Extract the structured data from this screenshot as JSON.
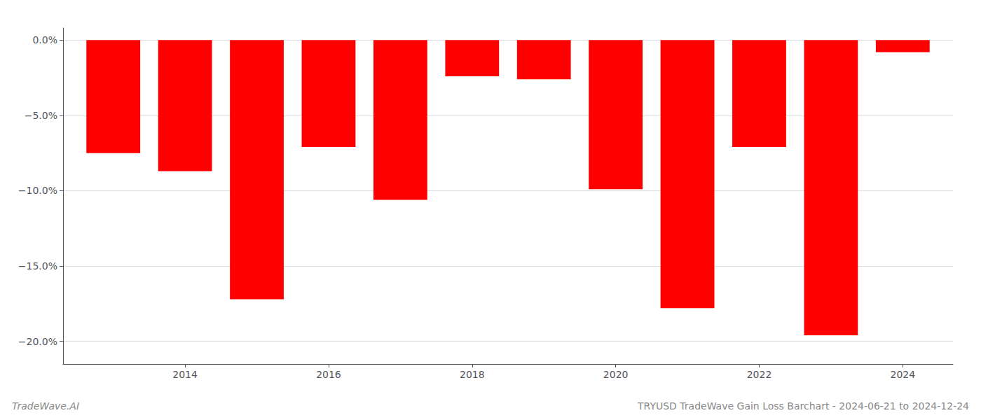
{
  "chart_data": {
    "type": "bar",
    "title": "TRYUSD TradeWave Gain Loss Barchart - 2024-06-21 to 2024-12-24",
    "annotations": [
      "TradeWave.AI"
    ],
    "x": [
      2013,
      2014,
      2015,
      2016,
      2017,
      2018,
      2019,
      2020,
      2021,
      2022,
      2023,
      2024
    ],
    "values": [
      -7.5,
      -8.7,
      -17.2,
      -7.1,
      -10.6,
      -2.4,
      -2.6,
      -9.9,
      -17.8,
      -7.1,
      -19.6,
      -0.8
    ],
    "color": "#ff0000",
    "xlim": [
      2012.3,
      2024.7
    ],
    "xticks": [
      2014,
      2016,
      2018,
      2020,
      2022,
      2024
    ],
    "ylim": [
      -21.5,
      0.8
    ],
    "yticks": [
      {
        "value": 0.0,
        "label": "0.0%"
      },
      {
        "value": -5.0,
        "label": "−5.0%"
      },
      {
        "value": -10.0,
        "label": "−10.0%"
      },
      {
        "value": -15.0,
        "label": "−15.0%"
      },
      {
        "value": -20.0,
        "label": "−20.0%"
      }
    ],
    "grid": true
  }
}
